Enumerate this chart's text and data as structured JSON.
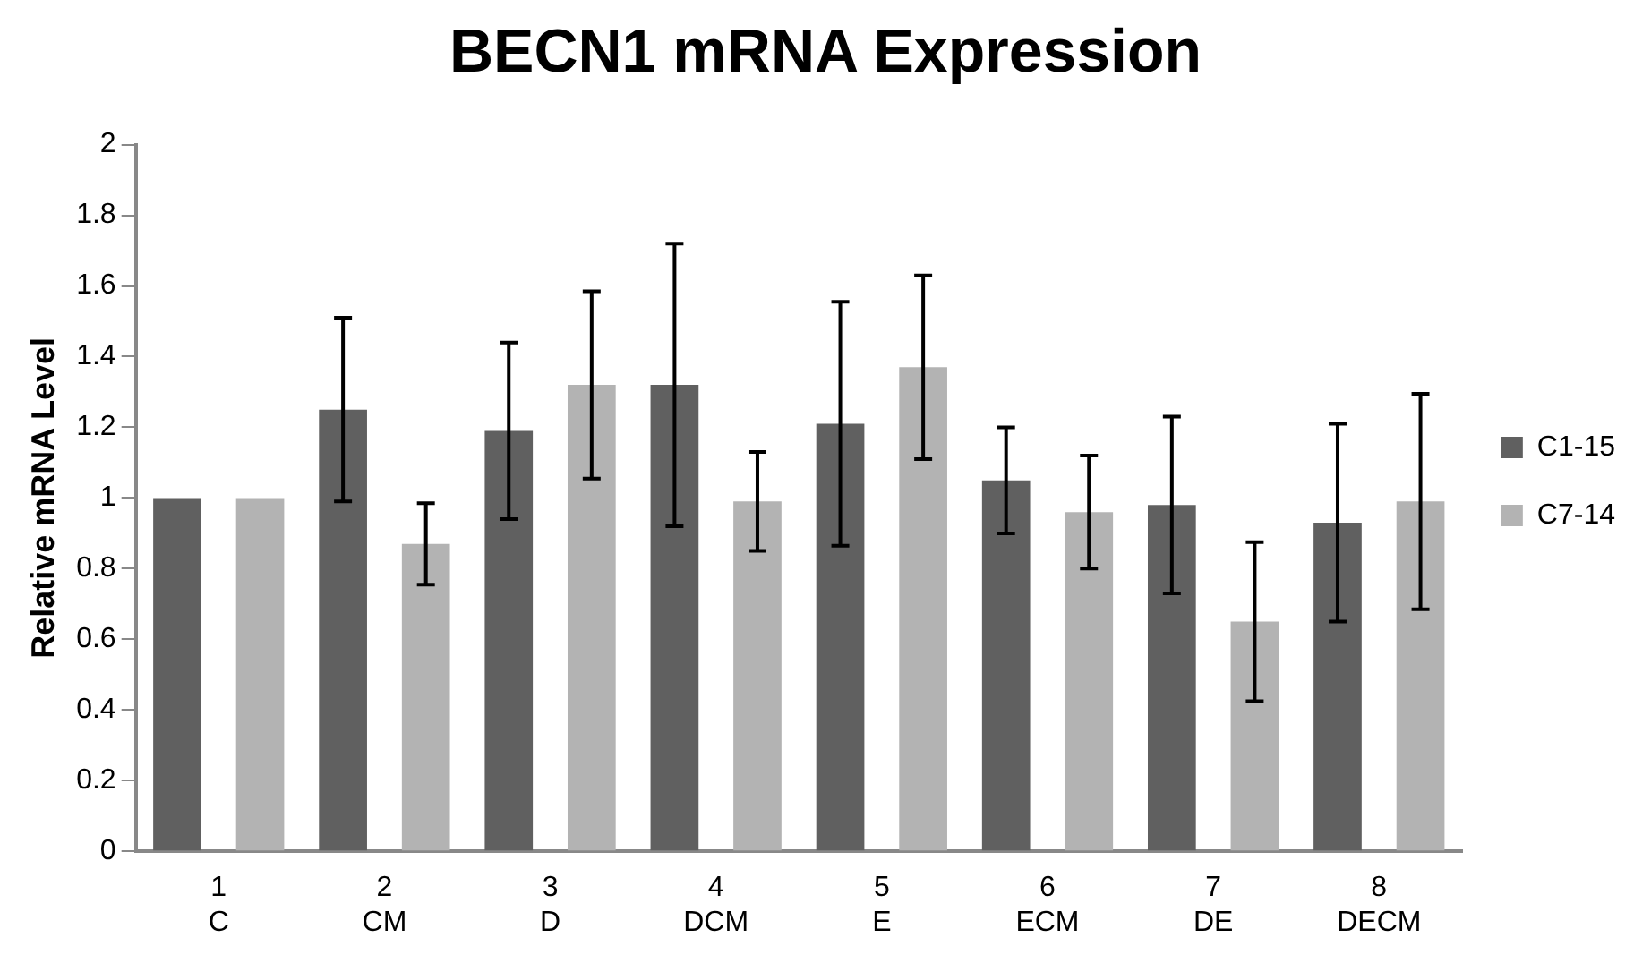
{
  "chart_data": {
    "type": "bar",
    "title": "BECN1 mRNA Expression",
    "ylabel": "Relative mRNA Level",
    "categories": [
      "1\nC",
      "2\nCM",
      "3\nD",
      "4\nDCM",
      "5\nE",
      "6\nECM",
      "7\nDE",
      "8\nDECM"
    ],
    "series": [
      {
        "name": "C1-15",
        "color": "#606060",
        "values": [
          1,
          1.25,
          1.19,
          1.32,
          1.21,
          1.05,
          0.98,
          0.93
        ],
        "errors": [
          null,
          0.26,
          0.25,
          0.4,
          0.345,
          0.15,
          0.25,
          0.28
        ]
      },
      {
        "name": "C7-14",
        "color": "#b3b3b3",
        "values": [
          1,
          0.87,
          1.32,
          0.99,
          1.37,
          0.96,
          0.65,
          0.99
        ],
        "errors": [
          null,
          0.115,
          0.265,
          0.14,
          0.26,
          0.16,
          0.225,
          0.305
        ]
      }
    ],
    "ylim": [
      0,
      2
    ],
    "yticks": [
      0,
      0.2,
      0.4,
      0.6,
      0.8,
      1,
      1.2,
      1.4,
      1.6,
      1.8,
      2
    ],
    "grid": false,
    "legend": "right"
  }
}
